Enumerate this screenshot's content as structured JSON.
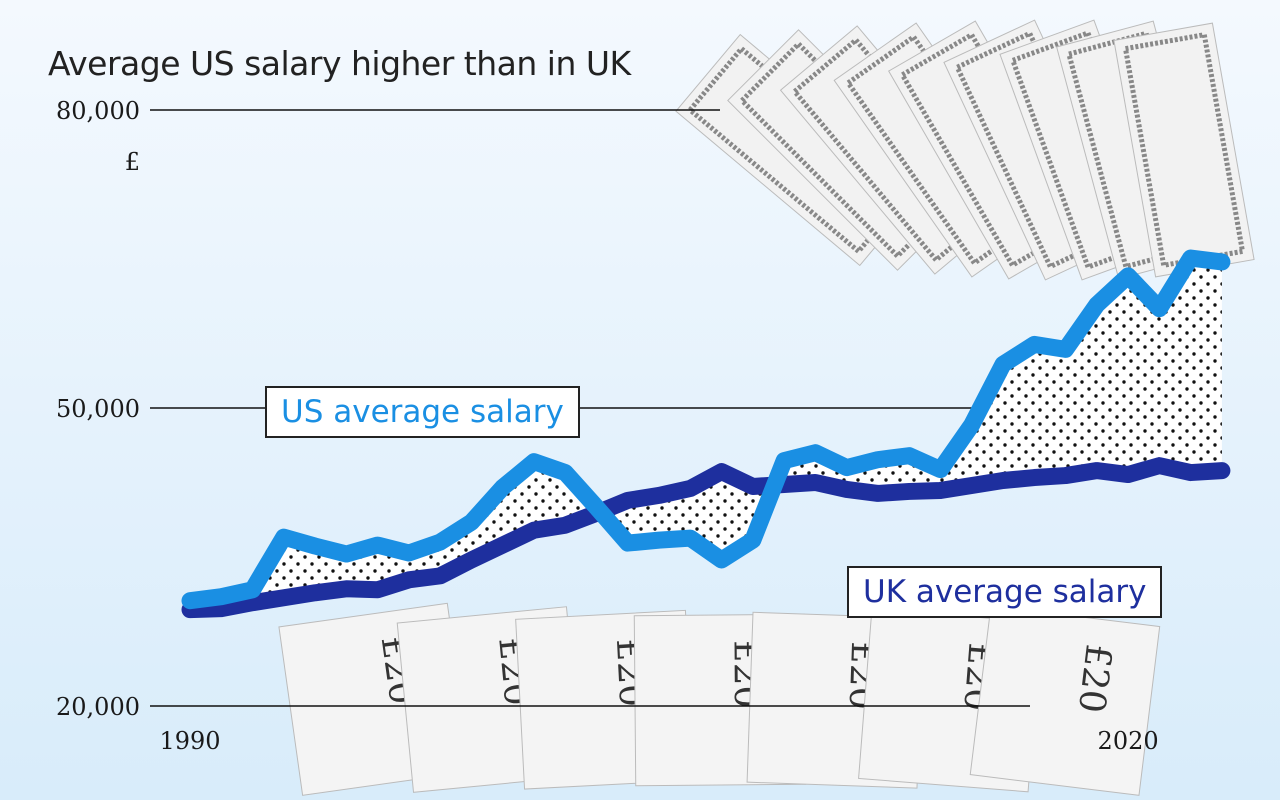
{
  "chart_data": {
    "type": "line",
    "title": "Average US salary higher than in UK",
    "ylabel": "£",
    "ylim": [
      20000,
      80000
    ],
    "yticks": [
      "20,000",
      "50,000",
      "80,000"
    ],
    "xlim": [
      1990,
      2023
    ],
    "xticks": [
      "1990",
      "2020"
    ],
    "x": [
      1990,
      1991,
      1992,
      1993,
      1994,
      1995,
      1996,
      1997,
      1998,
      1999,
      2000,
      2001,
      2002,
      2003,
      2004,
      2005,
      2006,
      2007,
      2008,
      2009,
      2010,
      2011,
      2012,
      2013,
      2014,
      2015,
      2016,
      2017,
      2018,
      2019,
      2020,
      2021,
      2022,
      2023
    ],
    "series": [
      {
        "name": "US average salary",
        "color": "#1a8fe3",
        "values": [
          30600,
          31000,
          31700,
          37000,
          36100,
          35300,
          36200,
          35400,
          36500,
          38500,
          42000,
          44600,
          43500,
          40000,
          36400,
          36700,
          36900,
          34700,
          36700,
          44700,
          45500,
          44000,
          44800,
          45200,
          43800,
          48300,
          54400,
          56400,
          55900,
          60400,
          63300,
          60000,
          65100,
          64700
        ]
      },
      {
        "name": "UK average salary",
        "color": "#1e2f9e",
        "values": [
          29700,
          29800,
          30400,
          30900,
          31400,
          31800,
          31700,
          32700,
          33100,
          34700,
          36200,
          37700,
          38200,
          39400,
          40700,
          41200,
          41900,
          43600,
          42100,
          42300,
          42500,
          41800,
          41400,
          41600,
          41700,
          42200,
          42700,
          43000,
          43200,
          43700,
          43300,
          44200,
          43500,
          43700
        ]
      }
    ],
    "grid": false,
    "fill_between": "dotted"
  }
}
